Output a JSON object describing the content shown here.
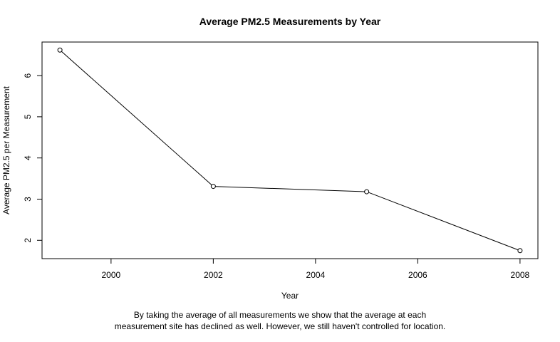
{
  "chart_data": {
    "type": "line",
    "title": "Average PM2.5 Measurements by Year",
    "xlabel": "Year",
    "ylabel": "Average PM2.5 per Measurement",
    "x": [
      1999,
      2002,
      2005,
      2008
    ],
    "y": [
      6.62,
      3.31,
      3.18,
      1.75
    ],
    "xlim": [
      1998.65,
      2008.35
    ],
    "ylim": [
      1.555,
      6.815
    ],
    "xticks": [
      2000,
      2002,
      2004,
      2006,
      2008
    ],
    "yticks": [
      2,
      3,
      4,
      5,
      6
    ],
    "marker": "open-circle",
    "grid": false,
    "legend": "none",
    "line_color": "#000000"
  },
  "caption": {
    "line1": "By taking the average of all measurements we show that the average at each",
    "line2": "measurement site has declined as well. However, we still haven't controlled for location."
  }
}
